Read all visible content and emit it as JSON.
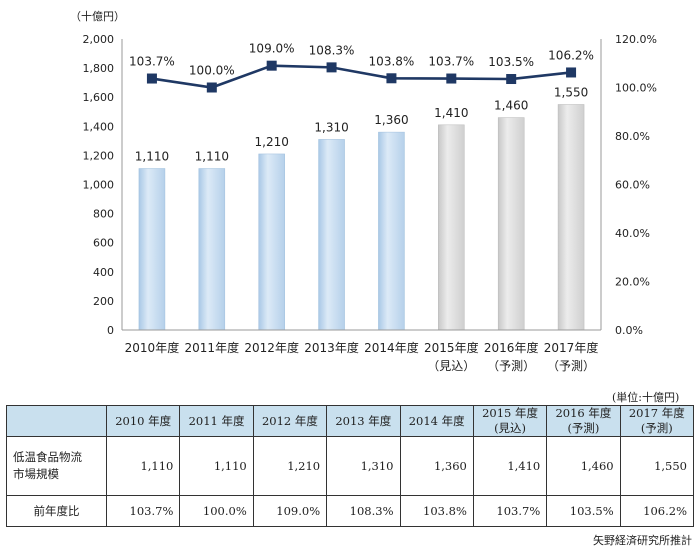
{
  "chart_data": {
    "type": "bar+line",
    "y_unit_label": "（十億円）",
    "categories": [
      [
        "2010年度",
        ""
      ],
      [
        "2011年度",
        ""
      ],
      [
        "2012年度",
        ""
      ],
      [
        "2013年度",
        ""
      ],
      [
        "2014年度",
        ""
      ],
      [
        "2015年度",
        "（見込）"
      ],
      [
        "2016年度",
        "（予測）"
      ],
      [
        "2017年度",
        "（予測）"
      ]
    ],
    "bar_values": [
      1110,
      1110,
      1210,
      1310,
      1360,
      1410,
      1460,
      1550
    ],
    "bar_labels": [
      "1,110",
      "1,110",
      "1,210",
      "1,310",
      "1,360",
      "1,410",
      "1,460",
      "1,550"
    ],
    "bar_kinds": [
      "actual",
      "actual",
      "actual",
      "actual",
      "actual",
      "forecast",
      "forecast",
      "forecast"
    ],
    "line_values": [
      103.7,
      100.0,
      109.0,
      108.3,
      103.8,
      103.7,
      103.5,
      106.2
    ],
    "line_labels": [
      "103.7%",
      "100.0%",
      "109.0%",
      "108.3%",
      "103.8%",
      "103.7%",
      "103.5%",
      "106.2%"
    ],
    "left_axis": {
      "min": 0,
      "max": 2000,
      "step": 200,
      "ticks": [
        "0",
        "200",
        "400",
        "600",
        "800",
        "1,000",
        "1,200",
        "1,400",
        "1,600",
        "1,800",
        "2,000"
      ]
    },
    "right_axis": {
      "min": 0,
      "max": 120,
      "step": 20,
      "ticks": [
        "0.0%",
        "20.0%",
        "40.0%",
        "60.0%",
        "80.0%",
        "100.0%",
        "120.0%"
      ]
    },
    "colors": {
      "actual_bar": "#c5dcf0",
      "forecast_bar": "#d9d9d9",
      "line": "#1f3864"
    },
    "grid": false
  },
  "table": {
    "unit_note": "(単位:十億円)",
    "headers": [
      [
        "2010 年度",
        ""
      ],
      [
        "2011 年度",
        ""
      ],
      [
        "2012 年度",
        ""
      ],
      [
        "2013 年度",
        ""
      ],
      [
        "2014 年度",
        ""
      ],
      [
        "2015 年度",
        "(見込)"
      ],
      [
        "2016 年度",
        "(予測)"
      ],
      [
        "2017 年度",
        "(予測)"
      ]
    ],
    "rows": [
      {
        "label": [
          "低温食品物流",
          "市場規模"
        ],
        "values": [
          "1,110",
          "1,110",
          "1,210",
          "1,310",
          "1,360",
          "1,410",
          "1,460",
          "1,550"
        ]
      },
      {
        "label": [
          "前年度比",
          ""
        ],
        "values": [
          "103.7%",
          "100.0%",
          "109.0%",
          "108.3%",
          "103.8%",
          "103.7%",
          "103.5%",
          "106.2%"
        ]
      }
    ]
  },
  "source": "矢野経済研究所推計"
}
